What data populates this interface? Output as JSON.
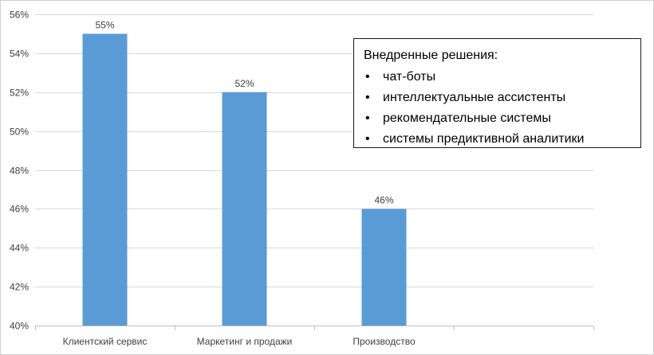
{
  "chart_data": {
    "type": "bar",
    "categories": [
      "Клиентский сервис",
      "Маркетинг и продажи",
      "Производство",
      ""
    ],
    "values": [
      55,
      52,
      46,
      null
    ],
    "data_labels": [
      "55%",
      "52%",
      "46%",
      ""
    ],
    "ylim": [
      40,
      56
    ],
    "yticks": [
      40,
      42,
      44,
      46,
      48,
      50,
      52,
      54,
      56
    ],
    "ytick_labels": [
      "40%",
      "42%",
      "44%",
      "46%",
      "48%",
      "50%",
      "52%",
      "54%",
      "56%"
    ],
    "grid": true,
    "legend_placement": "top-right",
    "bar_color": "#5b9bd5",
    "grid_color": "#d9d9d9"
  },
  "annotation": {
    "title": "Внедренные решения:",
    "items": [
      "чат-боты",
      "интеллектуальные ассистенты",
      "рекомендательные системы",
      "системы предиктивной аналитики"
    ],
    "bullet": "•"
  }
}
